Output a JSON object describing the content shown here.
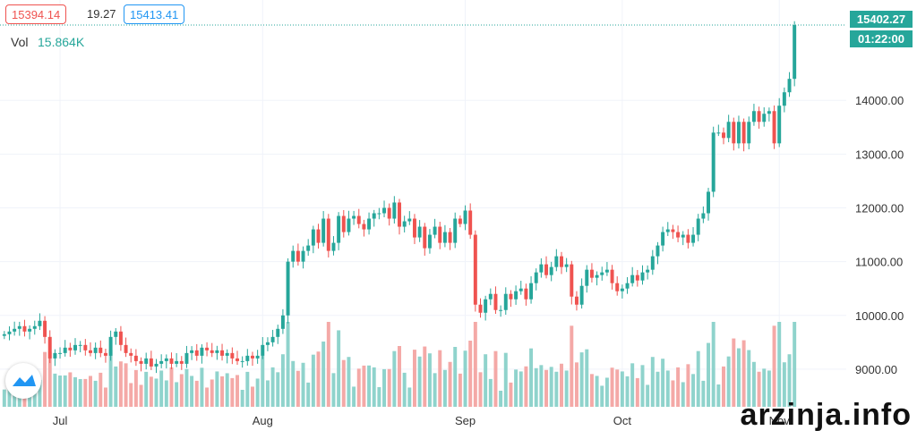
{
  "header": {
    "open_value": "15394.14",
    "change_value": "19.27",
    "close_value": "15413.41",
    "vol_label": "Vol",
    "vol_value": "15.864K"
  },
  "price_axis": {
    "current_price": "15402.27",
    "countdown": "01:22:00"
  },
  "watermark": "arzinja.info",
  "colors": {
    "up": "#26a69a",
    "down": "#ef5350",
    "up_vol": "#8fd3cc",
    "down_vol": "#f4a9a7",
    "open_border": "#ef5350",
    "close_border": "#2196f3"
  },
  "chart_data": {
    "type": "candlestick",
    "title": "",
    "x_labels": [
      "Jul",
      "Aug",
      "Sep",
      "Oct",
      "Nov"
    ],
    "x_label_positions": [
      11,
      51,
      91,
      122,
      153
    ],
    "y_ticks": [
      "9000.00",
      "10000.00",
      "11000.00",
      "12000.00",
      "13000.00",
      "14000.00"
    ],
    "y_tick_values": [
      9000,
      10000,
      11000,
      12000,
      13000,
      14000
    ],
    "ylim": [
      8300,
      15700
    ],
    "x_count": 162,
    "closes": [
      9650,
      9700,
      9750,
      9800,
      9700,
      9750,
      9800,
      9900,
      9600,
      9200,
      9300,
      9300,
      9400,
      9350,
      9450,
      9450,
      9350,
      9300,
      9400,
      9300,
      9250,
      9600,
      9700,
      9450,
      9300,
      9250,
      9150,
      9100,
      9200,
      9050,
      9100,
      9150,
      9200,
      9100,
      9150,
      9100,
      9300,
      9350,
      9250,
      9400,
      9350,
      9300,
      9350,
      9250,
      9300,
      9200,
      9150,
      9150,
      9250,
      9200,
      9250,
      9450,
      9500,
      9600,
      9750,
      10000,
      11000,
      11200,
      11000,
      11200,
      11300,
      11600,
      11350,
      11800,
      11200,
      11350,
      11850,
      11550,
      11800,
      11850,
      11700,
      11600,
      11800,
      11900,
      11900,
      12000,
      11800,
      12100,
      11650,
      11750,
      11800,
      11450,
      11650,
      11250,
      11500,
      11650,
      11350,
      11550,
      11350,
      11800,
      11700,
      11950,
      11500,
      10200,
      10050,
      10300,
      10400,
      10100,
      10100,
      10400,
      10300,
      10450,
      10500,
      10300,
      10600,
      10800,
      10950,
      10750,
      10900,
      11100,
      10900,
      10950,
      10350,
      10200,
      10550,
      10850,
      10700,
      10750,
      10800,
      10850,
      10600,
      10450,
      10500,
      10600,
      10750,
      10650,
      10800,
      10850,
      11100,
      11300,
      11550,
      11600,
      11550,
      11450,
      11500,
      11350,
      11500,
      11800,
      11900,
      12300,
      13400,
      13400,
      13300,
      13600,
      13200,
      13600,
      13200,
      13600,
      13800,
      13600,
      13750,
      13800,
      13200,
      13900,
      14150,
      14400,
      15400
    ]
  }
}
